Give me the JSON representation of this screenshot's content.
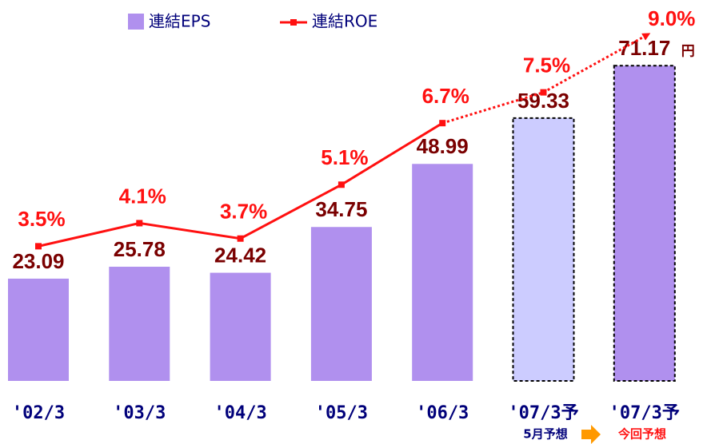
{
  "chart_data": {
    "type": "bar_line",
    "categories": [
      "'02/3",
      "'03/3",
      "'04/3",
      "'05/3",
      "'06/3",
      "'07/3予",
      "'07/3予"
    ],
    "series": [
      {
        "name": "連結EPS",
        "color": "#b090ee",
        "colors": [
          "#b090ee",
          "#b090ee",
          "#b090ee",
          "#b090ee",
          "#b090ee",
          "#ccccff",
          "#b090ee"
        ],
        "values": [
          23.09,
          25.78,
          24.42,
          34.75,
          48.99,
          59.33,
          71.17
        ]
      },
      {
        "name": "連結ROE",
        "color": "#ff1010",
        "axis": "y2",
        "values": [
          3.5,
          4.1,
          3.7,
          5.1,
          6.7,
          7.5,
          9.0
        ],
        "value_labels": [
          "3.5%",
          "4.1%",
          "3.7%",
          "5.1%",
          "6.7%",
          "7.5%",
          "9.0%"
        ]
      }
    ],
    "unit": "円",
    "annotations": [
      "5月予想",
      "今回予想"
    ],
    "ylim": [
      0,
      86
    ],
    "y2lim": [
      0,
      9.9
    ]
  }
}
